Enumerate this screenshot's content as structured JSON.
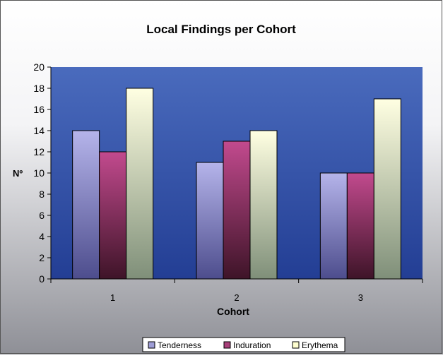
{
  "chart_data": {
    "type": "bar",
    "title": "Local Findings per Cohort",
    "xlabel": "Cohort",
    "ylabel": "Nº",
    "categories": [
      "1",
      "2",
      "3"
    ],
    "ylim": [
      0,
      20
    ],
    "yticks": [
      0,
      2,
      4,
      6,
      8,
      10,
      12,
      14,
      16,
      18,
      20
    ],
    "grid": false,
    "legend_position": "bottom",
    "series": [
      {
        "name": "Tenderness",
        "values": [
          14,
          11,
          10
        ],
        "color": "#9E9DD6"
      },
      {
        "name": "Induration",
        "values": [
          12,
          13,
          10
        ],
        "color": "#A8407A"
      },
      {
        "name": "Erythema",
        "values": [
          18,
          14,
          17
        ],
        "color": "#FFFFD0"
      }
    ]
  }
}
